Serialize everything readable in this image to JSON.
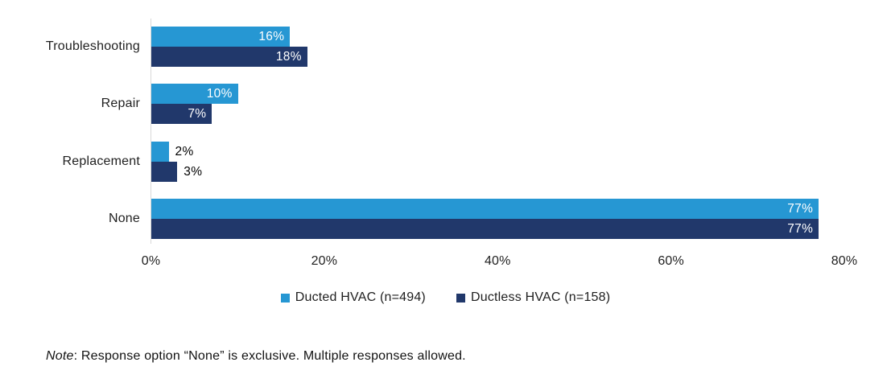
{
  "chart_data": {
    "type": "bar",
    "orientation": "horizontal",
    "title": "",
    "categories": [
      "Troubleshooting",
      "Repair",
      "Replacement",
      "None"
    ],
    "series": [
      {
        "name": "Ducted HVAC (n=494)",
        "color": "#2697D3",
        "values": [
          16,
          10,
          2,
          77
        ]
      },
      {
        "name": "Ductless HVAC (n=158)",
        "color": "#21386B",
        "values": [
          18,
          7,
          3,
          77
        ]
      }
    ],
    "value_suffix": "%",
    "xlim": [
      0,
      80
    ],
    "xticks": [
      0,
      20,
      40,
      60,
      80
    ],
    "xtick_labels": [
      "0%",
      "20%",
      "40%",
      "60%",
      "80%"
    ],
    "grid": false,
    "legend_position": "bottom-center",
    "data_label_placement": "inside-end white; outside-end black for bars below ~5%"
  },
  "note": {
    "prefix": "Note",
    "body": ": Response option “None” is exclusive. Multiple responses allowed."
  },
  "colors": {
    "axis_line": "#D9D9D9",
    "axis_text": "#1F1F1F",
    "data_label_inside": "#FFFFFF",
    "data_label_outside": "#000000",
    "note_text": "#111111"
  }
}
